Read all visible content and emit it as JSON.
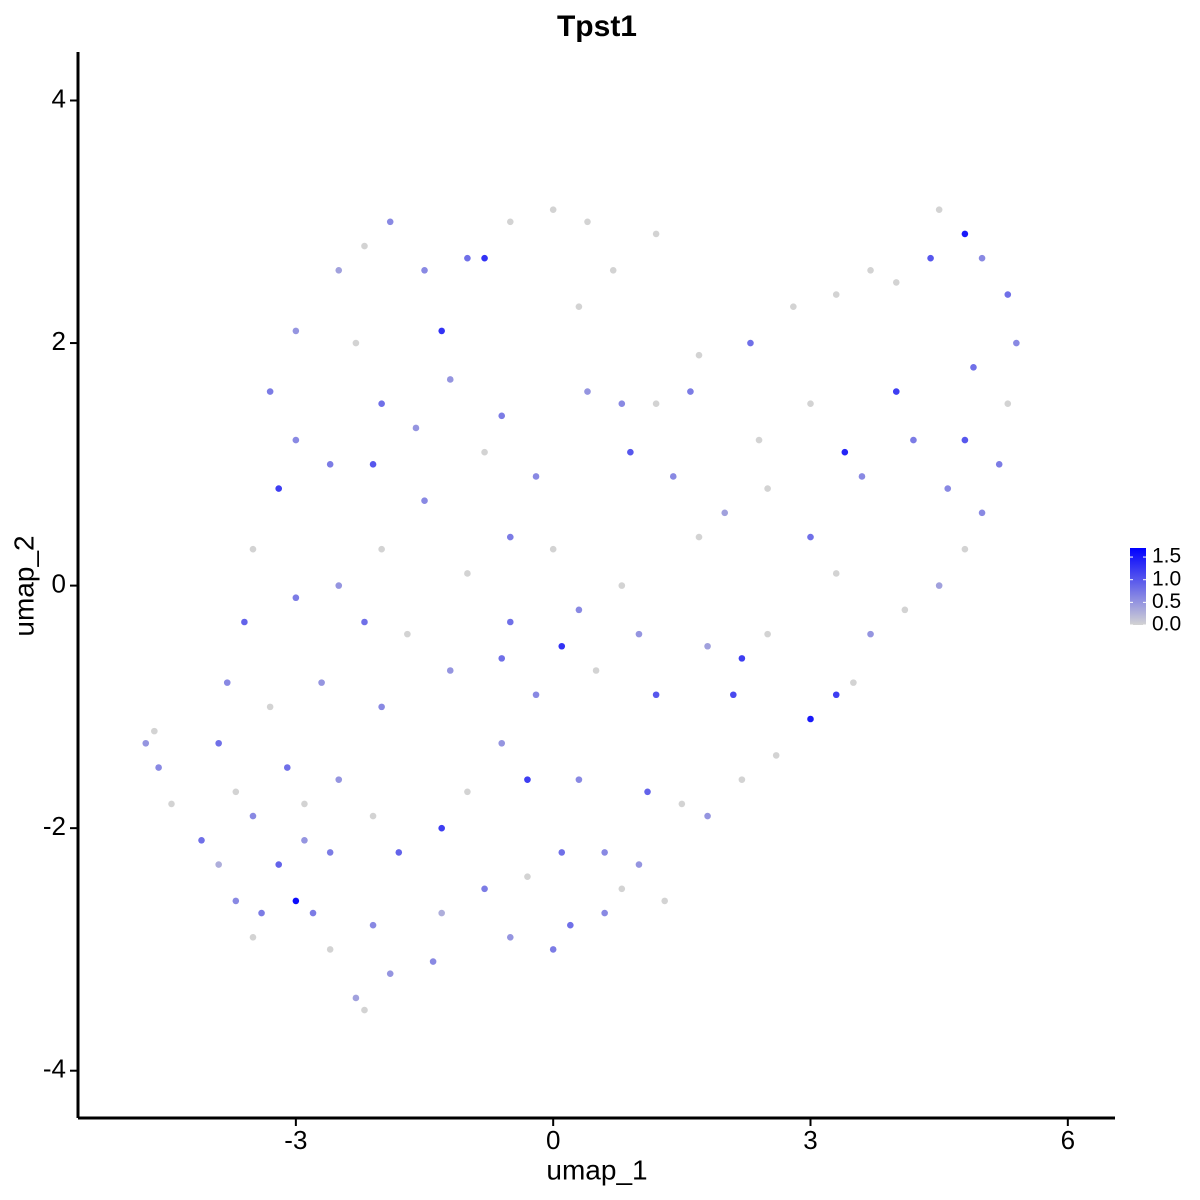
{
  "chart_data": {
    "type": "scatter",
    "title": "Tpst1",
    "x_label": "umap_1",
    "y_label": "umap_2",
    "xlim": [
      -5.54,
      6.55
    ],
    "ylim": [
      -4.39,
      4.4
    ],
    "xticks": [
      -3,
      0,
      3,
      6
    ],
    "yticks": [
      -4,
      -2,
      0,
      2,
      4
    ],
    "color_low": "#d3d3d3",
    "color_high": "#0000ff",
    "colorbar_lim": [
      0,
      1.7
    ],
    "colorbar_ticks": [
      {
        "value": 0,
        "label": "0.0"
      },
      {
        "value": 0.5,
        "label": "0.5"
      },
      {
        "value": 1,
        "label": "1.0"
      },
      {
        "value": 1.5,
        "label": "1.5"
      }
    ],
    "x": [
      -4.75,
      -4.65,
      -4.6,
      -4.45,
      -4.1,
      -3.9,
      -3.7,
      -3.5,
      -3.2,
      -3.0,
      -2.8,
      -2.6,
      -2.6,
      -2.3,
      -2.2,
      -2.1,
      -1.9,
      -1.4,
      -1.3,
      -3.5,
      -3.9,
      -3.7,
      -3.1,
      -2.9,
      -2.5,
      -2.1,
      -1.8,
      -1.3,
      -0.8,
      -0.5,
      0,
      0.2,
      0.6,
      0.8,
      1.0,
      1.1,
      1.5,
      1.8,
      2.2,
      2.6,
      3.0,
      3.3,
      3.5,
      3.7,
      4.1,
      4.5,
      4.8,
      5.0,
      5.2,
      5.3,
      5.4,
      5.3,
      5.0,
      4.8,
      4.5,
      4.4,
      4.0,
      3.7,
      3.3,
      2.8,
      2.3,
      1.7,
      1.6,
      1.2,
      0.8,
      0.4,
      0.3,
      0.7,
      1.2,
      0.4,
      0,
      -0.5,
      -0.8,
      -1.0,
      -1.5,
      -1.9,
      -2.2,
      -2.5,
      -3.0,
      -3.3,
      -3.0,
      -3.2,
      -3.5,
      -3.6,
      -3.0,
      -2.5,
      -2.0,
      -1.5,
      -1.0,
      -0.5,
      0,
      0.3,
      0.8,
      1.0,
      1.2,
      1.8,
      2.2,
      2.1,
      2.5,
      3.3,
      3.6,
      3.4,
      4.0,
      4.2,
      4.6,
      4.8,
      4.9,
      3.0,
      2.4,
      2.0,
      2.5,
      3.0,
      -2.0,
      -1.6,
      -1.3,
      -0.6,
      -0.2,
      -0.8,
      -1.2,
      -2.3,
      -2.6,
      -2.1,
      -1.7,
      -1.2,
      -0.6,
      -0.2,
      0.5,
      -0.6,
      -0.3,
      0.3,
      -1.0,
      -2.0,
      -2.7,
      -3.3,
      -3.8,
      -2.2,
      -2.9,
      -3.4,
      0.6,
      1.3,
      0.1,
      -0.3,
      1.4,
      0.9,
      1.7,
      -0.5,
      0.1
    ],
    "y": [
      -1.3,
      -1.2,
      -1.5,
      -1.8,
      -2.1,
      -2.3,
      -2.6,
      -2.9,
      -2.3,
      -2.6,
      -2.7,
      -3.0,
      -2.2,
      -3.4,
      -3.5,
      -2.8,
      -3.2,
      -3.1,
      -2.7,
      -1.9,
      -1.3,
      -1.7,
      -1.5,
      -1.8,
      -1.6,
      -1.9,
      -2.2,
      -2.0,
      -2.5,
      -2.9,
      -3.0,
      -2.8,
      -2.7,
      -2.5,
      -2.3,
      -1.7,
      -1.8,
      -1.9,
      -1.6,
      -1.4,
      -1.1,
      -0.9,
      -0.8,
      -0.4,
      -0.2,
      0.0,
      0.3,
      0.6,
      1.0,
      1.5,
      2.0,
      2.4,
      2.7,
      2.9,
      3.1,
      2.7,
      2.5,
      2.6,
      2.4,
      2.3,
      2.0,
      1.9,
      1.6,
      1.5,
      1.5,
      1.6,
      2.3,
      2.6,
      2.9,
      3.0,
      3.1,
      3.0,
      2.7,
      2.7,
      2.6,
      3.0,
      2.8,
      2.6,
      2.1,
      1.6,
      1.2,
      0.8,
      0.3,
      -0.3,
      -0.1,
      0.0,
      0.3,
      0.7,
      0.1,
      0.4,
      0.3,
      -0.2,
      0.0,
      -0.4,
      -0.9,
      -0.5,
      -0.6,
      -0.9,
      -0.4,
      0.1,
      0.9,
      1.1,
      1.6,
      1.2,
      0.8,
      1.2,
      1.8,
      1.5,
      1.2,
      0.6,
      0.8,
      0.4,
      1.5,
      1.3,
      2.1,
      1.4,
      0.9,
      1.1,
      1.7,
      2.0,
      1.0,
      1.0,
      -0.4,
      -0.7,
      -0.6,
      -0.9,
      -0.7,
      -1.3,
      -1.6,
      -1.6,
      -1.7,
      -1.0,
      -0.8,
      -1.0,
      -0.8,
      -0.3,
      -2.1,
      -2.7,
      -2.2,
      -2.6,
      -2.2,
      -2.4,
      0.9,
      1.1,
      0.4,
      -0.3,
      -0.5
    ],
    "values": [
      0.5,
      0,
      0.6,
      0,
      0.8,
      0.3,
      0.6,
      0,
      0.9,
      1.6,
      0.7,
      0,
      0.7,
      0.4,
      0,
      0.6,
      0.5,
      0.6,
      0.3,
      0.6,
      0.8,
      0,
      0.8,
      0,
      0.5,
      0,
      0.9,
      1.2,
      0.7,
      0.5,
      0.7,
      0.8,
      0.6,
      0,
      0.5,
      0.9,
      0,
      0.5,
      0,
      0,
      1.5,
      1.2,
      0,
      0.5,
      0,
      0.4,
      0,
      0.6,
      0.7,
      0,
      0.6,
      0.8,
      0.6,
      1.5,
      0,
      1.0,
      0,
      0,
      0,
      0,
      0.8,
      0,
      0.7,
      0,
      0.6,
      0.5,
      0,
      0,
      0,
      0,
      0,
      0,
      1.3,
      0.8,
      0.6,
      0.6,
      0,
      0.4,
      0.5,
      0.7,
      0.6,
      1.2,
      0,
      0.9,
      0.7,
      0.5,
      0,
      0.6,
      0,
      0.7,
      0,
      0.6,
      0,
      0.5,
      1.0,
      0.4,
      1.2,
      1.1,
      0,
      0,
      0.6,
      1.4,
      1.2,
      0.7,
      0.6,
      1.0,
      0.8,
      0,
      0,
      0.4,
      0,
      0.8,
      0.8,
      0.5,
      1.3,
      0.7,
      0.6,
      0,
      0.5,
      0,
      0.7,
      1.0,
      0,
      0.5,
      0.8,
      0.6,
      0,
      0.5,
      1.2,
      0.6,
      0,
      0.6,
      0.5,
      0,
      0.6,
      0.8,
      0.5,
      0.7,
      0.6,
      0,
      0.8,
      0,
      0.6,
      1.0,
      0,
      0.8,
      1.3
    ]
  }
}
